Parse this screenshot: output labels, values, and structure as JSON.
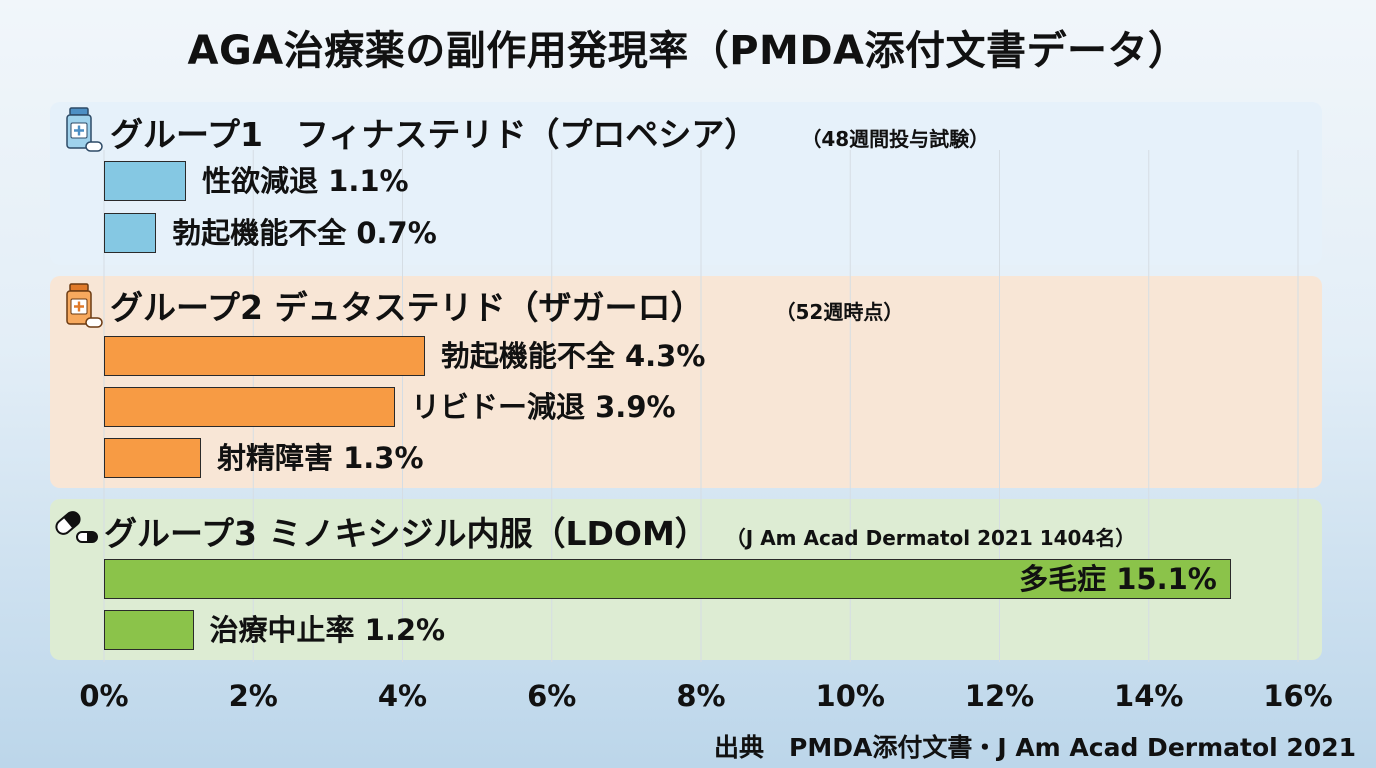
{
  "title": "AGA治療薬の副作用発現率（PMDA添付文書データ）",
  "source": "出典　PMDA添付文書・J Am Acad Dermatol 2021",
  "colors": {
    "group1": "#85c8e3",
    "group2": "#f79b44",
    "group3": "#8bc34a"
  },
  "chart_data": {
    "type": "bar",
    "orientation": "horizontal",
    "title": "AGA治療薬の副作用発現率（PMDA添付文書データ）",
    "xlabel": "",
    "ylabel": "",
    "xlim": [
      0,
      16
    ],
    "xticks": [
      "0%",
      "2%",
      "4%",
      "6%",
      "8%",
      "10%",
      "12%",
      "14%",
      "16%"
    ],
    "grid": true,
    "groups": [
      {
        "title": "グループ1　フィナステリド（プロペシア）",
        "note": "（48週間投与試験）",
        "color": "#85c8e3",
        "icon": "medicine-bottle-icon",
        "bars": [
          {
            "label": "性欲減退  1.1%",
            "value": 1.1
          },
          {
            "label": "勃起機能不全 0.7%",
            "value": 0.7
          }
        ]
      },
      {
        "title": "グループ2  デュタステリド（ザガーロ）",
        "note": "（52週時点）",
        "color": "#f79b44",
        "icon": "medicine-bottle-icon",
        "bars": [
          {
            "label": "勃起機能不全 4.3%",
            "value": 4.3
          },
          {
            "label": "リビドー減退 3.9%",
            "value": 3.9
          },
          {
            "label": "射精障害 1.3%",
            "value": 1.3
          }
        ]
      },
      {
        "title": "グループ3  ミノキシジル内服（LDOM）",
        "note": "（J Am Acad Dermatol 2021 1404名）",
        "color": "#8bc34a",
        "icon": "capsule-icon",
        "bars": [
          {
            "label": "多毛症 15.1%",
            "value": 15.1
          },
          {
            "label": "治療中止率 1.2%",
            "value": 1.2
          }
        ]
      }
    ]
  }
}
